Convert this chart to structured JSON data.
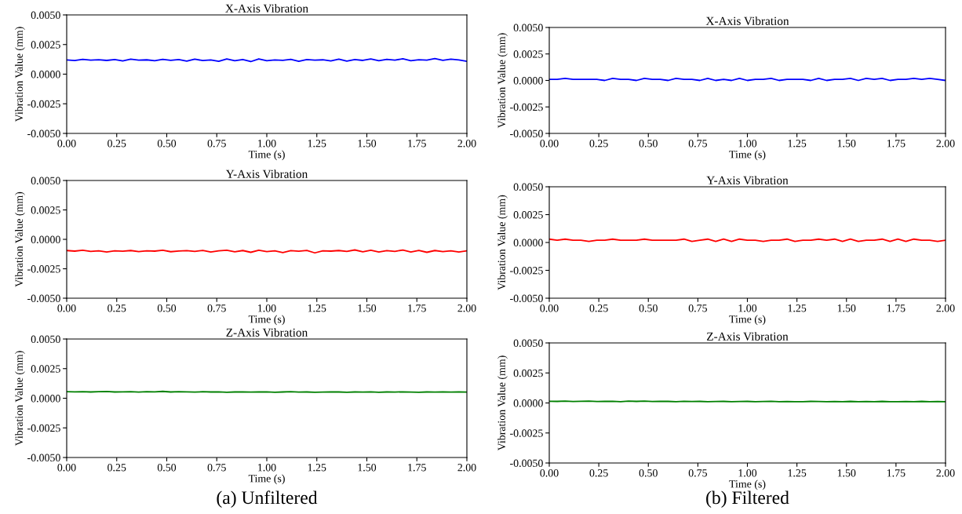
{
  "chart_data": [
    {
      "type": "line",
      "title": "X-Axis Vibration",
      "xlabel": "Time (s)",
      "ylabel": "Vibration Value (mm)",
      "xlim": [
        0,
        2
      ],
      "ylim": [
        -0.005,
        0.005
      ],
      "xticks": [
        {
          "value": 0,
          "label": "0.00"
        },
        {
          "value": 0.25,
          "label": "0.25"
        },
        {
          "value": 0.5,
          "label": "0.50"
        },
        {
          "value": 0.75,
          "label": "0.75"
        },
        {
          "value": 1,
          "label": "1.00"
        },
        {
          "value": 1.25,
          "label": "1.25"
        },
        {
          "value": 1.5,
          "label": "1.50"
        },
        {
          "value": 1.75,
          "label": "1.75"
        },
        {
          "value": 2,
          "label": "2.00"
        }
      ],
      "yticks": [
        {
          "value": -0.005,
          "label": "-0.0050"
        },
        {
          "value": -0.0025,
          "label": "-0.0025"
        },
        {
          "value": 0,
          "label": "0.0000"
        },
        {
          "value": 0.0025,
          "label": "0.0025"
        },
        {
          "value": 0.005,
          "label": "0.0050"
        }
      ],
      "x": [
        0,
        0.04,
        0.08,
        0.12,
        0.16,
        0.2,
        0.24,
        0.28,
        0.32,
        0.36,
        0.4,
        0.44,
        0.48,
        0.52,
        0.56,
        0.6,
        0.64,
        0.68,
        0.72,
        0.76,
        0.8,
        0.84,
        0.88,
        0.92,
        0.96,
        1,
        1.04,
        1.08,
        1.12,
        1.16,
        1.2,
        1.24,
        1.28,
        1.32,
        1.36,
        1.4,
        1.44,
        1.48,
        1.52,
        1.56,
        1.6,
        1.64,
        1.68,
        1.72,
        1.76,
        1.8,
        1.84,
        1.88,
        1.92,
        1.96,
        2
      ],
      "series": [
        {
          "color": "#0000ff",
          "values": [
            0.0012,
            0.00115,
            0.00125,
            0.00118,
            0.00122,
            0.00116,
            0.00124,
            0.00112,
            0.00126,
            0.00119,
            0.00121,
            0.00114,
            0.00125,
            0.00117,
            0.00123,
            0.0011,
            0.00127,
            0.00115,
            0.0012,
            0.00108,
            0.00128,
            0.00113,
            0.00124,
            0.00106,
            0.00129,
            0.00114,
            0.0012,
            0.00117,
            0.00125,
            0.00109,
            0.00123,
            0.00118,
            0.00121,
            0.00112,
            0.00126,
            0.0011,
            0.00124,
            0.00116,
            0.00128,
            0.00113,
            0.00125,
            0.00118,
            0.0013,
            0.00114,
            0.00122,
            0.00119,
            0.00131,
            0.00117,
            0.00127,
            0.0012,
            0.00108
          ]
        }
      ]
    },
    {
      "type": "line",
      "title": "X-Axis Vibration",
      "xlabel": "Time (s)",
      "ylabel": "Vibration Value (mm)",
      "xlim": [
        0,
        2
      ],
      "ylim": [
        -0.005,
        0.005
      ],
      "xticks": [
        {
          "value": 0,
          "label": "0.00"
        },
        {
          "value": 0.25,
          "label": "0.25"
        },
        {
          "value": 0.5,
          "label": "0.50"
        },
        {
          "value": 0.75,
          "label": "0.75"
        },
        {
          "value": 1,
          "label": "1.00"
        },
        {
          "value": 1.25,
          "label": "1.25"
        },
        {
          "value": 1.5,
          "label": "1.50"
        },
        {
          "value": 1.75,
          "label": "1.75"
        },
        {
          "value": 2,
          "label": "2.00"
        }
      ],
      "yticks": [
        {
          "value": -0.005,
          "label": "-0.0050"
        },
        {
          "value": -0.0025,
          "label": "-0.0025"
        },
        {
          "value": 0,
          "label": "0.0000"
        },
        {
          "value": 0.0025,
          "label": "0.0025"
        },
        {
          "value": 0.005,
          "label": "0.0050"
        }
      ],
      "x": [
        0,
        0.04,
        0.08,
        0.12,
        0.16,
        0.2,
        0.24,
        0.28,
        0.32,
        0.36,
        0.4,
        0.44,
        0.48,
        0.52,
        0.56,
        0.6,
        0.64,
        0.68,
        0.72,
        0.76,
        0.8,
        0.84,
        0.88,
        0.92,
        0.96,
        1,
        1.04,
        1.08,
        1.12,
        1.16,
        1.2,
        1.24,
        1.28,
        1.32,
        1.36,
        1.4,
        1.44,
        1.48,
        1.52,
        1.56,
        1.6,
        1.64,
        1.68,
        1.72,
        1.76,
        1.8,
        1.84,
        1.88,
        1.92,
        1.96,
        2
      ],
      "series": [
        {
          "color": "#0000ff",
          "values": [
            0.0001,
            0.0001,
            0.0002,
            0.0001,
            0.0001,
            0.0001,
            0.0001,
            0,
            0.0002,
            0.0001,
            0.0001,
            0,
            0.0002,
            0.0001,
            0.0001,
            0,
            0.0002,
            0.0001,
            0.0001,
            0,
            0.0002,
            0,
            0.0001,
            0,
            0.0002,
            0,
            0.0001,
            0.0001,
            0.0002,
            0,
            0.0001,
            0.0001,
            0.0001,
            0,
            0.0002,
            0,
            0.0001,
            0.0001,
            0.0002,
            0,
            0.0002,
            0.0001,
            0.0002,
            0,
            0.0001,
            0.0001,
            0.0002,
            0.0001,
            0.0002,
            0.0001,
            0
          ]
        }
      ]
    },
    {
      "type": "line",
      "title": "Y-Axis Vibration",
      "xlabel": "Time (s)",
      "ylabel": "Vibration Value (mm)",
      "xlim": [
        0,
        2
      ],
      "ylim": [
        -0.005,
        0.005
      ],
      "xticks": [
        {
          "value": 0,
          "label": "0.00"
        },
        {
          "value": 0.25,
          "label": "0.25"
        },
        {
          "value": 0.5,
          "label": "0.50"
        },
        {
          "value": 0.75,
          "label": "0.75"
        },
        {
          "value": 1,
          "label": "1.00"
        },
        {
          "value": 1.25,
          "label": "1.25"
        },
        {
          "value": 1.5,
          "label": "1.50"
        },
        {
          "value": 1.75,
          "label": "1.75"
        },
        {
          "value": 2,
          "label": "2.00"
        }
      ],
      "yticks": [
        {
          "value": -0.005,
          "label": "-0.0050"
        },
        {
          "value": -0.0025,
          "label": "-0.0025"
        },
        {
          "value": 0,
          "label": "0.0000"
        },
        {
          "value": 0.0025,
          "label": "0.0025"
        },
        {
          "value": 0.005,
          "label": "0.0050"
        }
      ],
      "x": [
        0,
        0.04,
        0.08,
        0.12,
        0.16,
        0.2,
        0.24,
        0.28,
        0.32,
        0.36,
        0.4,
        0.44,
        0.48,
        0.52,
        0.56,
        0.6,
        0.64,
        0.68,
        0.72,
        0.76,
        0.8,
        0.84,
        0.88,
        0.92,
        0.96,
        1,
        1.04,
        1.08,
        1.12,
        1.16,
        1.2,
        1.24,
        1.28,
        1.32,
        1.36,
        1.4,
        1.44,
        1.48,
        1.52,
        1.56,
        1.6,
        1.64,
        1.68,
        1.72,
        1.76,
        1.8,
        1.84,
        1.88,
        1.92,
        1.96,
        2
      ],
      "series": [
        {
          "color": "#ff0000",
          "values": [
            -0.00095,
            -0.001,
            -0.00092,
            -0.00103,
            -0.00097,
            -0.00108,
            -0.00098,
            -0.00101,
            -0.00095,
            -0.00104,
            -0.00097,
            -0.001,
            -0.00093,
            -0.00105,
            -0.00099,
            -0.00096,
            -0.00102,
            -0.00094,
            -0.00108,
            -0.00097,
            -0.00092,
            -0.00106,
            -0.00095,
            -0.0011,
            -0.00093,
            -0.00104,
            -0.00098,
            -0.00112,
            -0.00096,
            -0.00101,
            -0.00094,
            -0.00115,
            -0.00097,
            -0.001,
            -0.00095,
            -0.00103,
            -0.0009,
            -0.00106,
            -0.00093,
            -0.00108,
            -0.00096,
            -0.00102,
            -0.00091,
            -0.00107,
            -0.00094,
            -0.0011,
            -0.00095,
            -0.00104,
            -0.00097,
            -0.00108,
            -0.00098
          ]
        }
      ]
    },
    {
      "type": "line",
      "title": "Y-Axis Vibration",
      "xlabel": "Time (s)",
      "ylabel": "Vibration Value (mm)",
      "xlim": [
        0,
        2
      ],
      "ylim": [
        -0.005,
        0.005
      ],
      "xticks": [
        {
          "value": 0,
          "label": "0.00"
        },
        {
          "value": 0.25,
          "label": "0.25"
        },
        {
          "value": 0.5,
          "label": "0.50"
        },
        {
          "value": 0.75,
          "label": "0.75"
        },
        {
          "value": 1,
          "label": "1.00"
        },
        {
          "value": 1.25,
          "label": "1.25"
        },
        {
          "value": 1.5,
          "label": "1.50"
        },
        {
          "value": 1.75,
          "label": "1.75"
        },
        {
          "value": 2,
          "label": "2.00"
        }
      ],
      "yticks": [
        {
          "value": -0.005,
          "label": "-0.0050"
        },
        {
          "value": -0.0025,
          "label": "-0.0025"
        },
        {
          "value": 0,
          "label": "0.0000"
        },
        {
          "value": 0.0025,
          "label": "0.0025"
        },
        {
          "value": 0.005,
          "label": "0.0050"
        }
      ],
      "x": [
        0,
        0.04,
        0.08,
        0.12,
        0.16,
        0.2,
        0.24,
        0.28,
        0.32,
        0.36,
        0.4,
        0.44,
        0.48,
        0.52,
        0.56,
        0.6,
        0.64,
        0.68,
        0.72,
        0.76,
        0.8,
        0.84,
        0.88,
        0.92,
        0.96,
        1,
        1.04,
        1.08,
        1.12,
        1.16,
        1.2,
        1.24,
        1.28,
        1.32,
        1.36,
        1.4,
        1.44,
        1.48,
        1.52,
        1.56,
        1.6,
        1.64,
        1.68,
        1.72,
        1.76,
        1.8,
        1.84,
        1.88,
        1.92,
        1.96,
        2
      ],
      "series": [
        {
          "color": "#ff0000",
          "values": [
            0.0003,
            0.0002,
            0.0003,
            0.0002,
            0.0002,
            0.0001,
            0.0002,
            0.0002,
            0.0003,
            0.0002,
            0.0002,
            0.0002,
            0.0003,
            0.0002,
            0.0002,
            0.0002,
            0.0002,
            0.0003,
            0.0001,
            0.0002,
            0.0003,
            0.0001,
            0.0003,
            0.0001,
            0.0003,
            0.0002,
            0.0002,
            0.0001,
            0.0002,
            0.0002,
            0.0003,
            0.0001,
            0.0002,
            0.0002,
            0.0003,
            0.0002,
            0.0003,
            0.0001,
            0.0003,
            0.0001,
            0.0002,
            0.0002,
            0.0003,
            0.0001,
            0.0003,
            0.0001,
            0.0003,
            0.0002,
            0.0002,
            0.0001,
            0.0002
          ]
        }
      ]
    },
    {
      "type": "line",
      "title": "Z-Axis Vibration",
      "xlabel": "Time (s)",
      "ylabel": "Vibration Value (mm)",
      "xlim": [
        0,
        2
      ],
      "ylim": [
        -0.005,
        0.005
      ],
      "annotations": [
        "(a) Unfiltered"
      ],
      "xticks": [
        {
          "value": 0,
          "label": "0.00"
        },
        {
          "value": 0.25,
          "label": "0.25"
        },
        {
          "value": 0.5,
          "label": "0.50"
        },
        {
          "value": 0.75,
          "label": "0.75"
        },
        {
          "value": 1,
          "label": "1.00"
        },
        {
          "value": 1.25,
          "label": "1.25"
        },
        {
          "value": 1.5,
          "label": "1.50"
        },
        {
          "value": 1.75,
          "label": "1.75"
        },
        {
          "value": 2,
          "label": "2.00"
        }
      ],
      "yticks": [
        {
          "value": -0.005,
          "label": "-0.0050"
        },
        {
          "value": -0.0025,
          "label": "-0.0025"
        },
        {
          "value": 0,
          "label": "0.0000"
        },
        {
          "value": 0.0025,
          "label": "0.0025"
        },
        {
          "value": 0.005,
          "label": "0.0050"
        }
      ],
      "x": [
        0,
        0.04,
        0.08,
        0.12,
        0.16,
        0.2,
        0.24,
        0.28,
        0.32,
        0.36,
        0.4,
        0.44,
        0.48,
        0.52,
        0.56,
        0.6,
        0.64,
        0.68,
        0.72,
        0.76,
        0.8,
        0.84,
        0.88,
        0.92,
        0.96,
        1,
        1.04,
        1.08,
        1.12,
        1.16,
        1.2,
        1.24,
        1.28,
        1.32,
        1.36,
        1.4,
        1.44,
        1.48,
        1.52,
        1.56,
        1.6,
        1.64,
        1.68,
        1.72,
        1.76,
        1.8,
        1.84,
        1.88,
        1.92,
        1.96,
        2
      ],
      "series": [
        {
          "color": "#008000",
          "values": [
            0.00055,
            0.00054,
            0.00056,
            0.00053,
            0.00055,
            0.00057,
            0.00053,
            0.00054,
            0.00055,
            0.00052,
            0.00056,
            0.00054,
            0.00058,
            0.00053,
            0.00055,
            0.00054,
            0.00052,
            0.00055,
            0.00053,
            0.00054,
            0.00051,
            0.00053,
            0.00054,
            0.00052,
            0.00053,
            0.00054,
            0.00051,
            0.00053,
            0.00055,
            0.00052,
            0.00053,
            0.00051,
            0.00052,
            0.00054,
            0.00053,
            0.00051,
            0.00053,
            0.00052,
            0.00054,
            0.00051,
            0.00053,
            0.00052,
            0.00054,
            0.00052,
            0.00051,
            0.00053,
            0.00052,
            0.00054,
            0.00052,
            0.00053,
            0.00052
          ]
        }
      ]
    },
    {
      "type": "line",
      "title": "Z-Axis Vibration",
      "xlabel": "Time (s)",
      "ylabel": "Vibration Value (mm)",
      "xlim": [
        0,
        2
      ],
      "ylim": [
        -0.005,
        0.005
      ],
      "annotations": [
        "(b) Filtered"
      ],
      "xticks": [
        {
          "value": 0,
          "label": "0.00"
        },
        {
          "value": 0.25,
          "label": "0.25"
        },
        {
          "value": 0.5,
          "label": "0.50"
        },
        {
          "value": 0.75,
          "label": "0.75"
        },
        {
          "value": 1,
          "label": "1.00"
        },
        {
          "value": 1.25,
          "label": "1.25"
        },
        {
          "value": 1.5,
          "label": "1.50"
        },
        {
          "value": 1.75,
          "label": "1.75"
        },
        {
          "value": 2,
          "label": "2.00"
        }
      ],
      "yticks": [
        {
          "value": -0.005,
          "label": "-0.0050"
        },
        {
          "value": -0.0025,
          "label": "-0.0025"
        },
        {
          "value": 0,
          "label": "0.0000"
        },
        {
          "value": 0.0025,
          "label": "0.0025"
        },
        {
          "value": 0.005,
          "label": "0.0050"
        }
      ],
      "x": [
        0,
        0.04,
        0.08,
        0.12,
        0.16,
        0.2,
        0.24,
        0.28,
        0.32,
        0.36,
        0.4,
        0.44,
        0.48,
        0.52,
        0.56,
        0.6,
        0.64,
        0.68,
        0.72,
        0.76,
        0.8,
        0.84,
        0.88,
        0.92,
        0.96,
        1,
        1.04,
        1.08,
        1.12,
        1.16,
        1.2,
        1.24,
        1.28,
        1.32,
        1.36,
        1.4,
        1.44,
        1.48,
        1.52,
        1.56,
        1.6,
        1.64,
        1.68,
        1.72,
        1.76,
        1.8,
        1.84,
        1.88,
        1.92,
        1.96,
        2
      ],
      "series": [
        {
          "color": "#008000",
          "values": [
            0.00014,
            0.00013,
            0.00015,
            0.00012,
            0.00014,
            0.00016,
            0.00012,
            0.00013,
            0.00014,
            0.00011,
            0.00015,
            0.00013,
            0.00016,
            0.00012,
            0.00014,
            0.00013,
            0.00011,
            0.00014,
            0.00012,
            0.00013,
            0.0001,
            0.00012,
            0.00013,
            0.00011,
            0.00012,
            0.00013,
            0.0001,
            0.00012,
            0.00014,
            0.00011,
            0.00012,
            0.0001,
            0.00011,
            0.00013,
            0.00012,
            0.0001,
            0.00012,
            0.00011,
            0.00013,
            0.0001,
            0.00012,
            0.00011,
            0.00013,
            0.00011,
            0.0001,
            0.00012,
            0.00011,
            0.00013,
            0.00011,
            0.00012,
            0.00011
          ]
        }
      ]
    }
  ]
}
